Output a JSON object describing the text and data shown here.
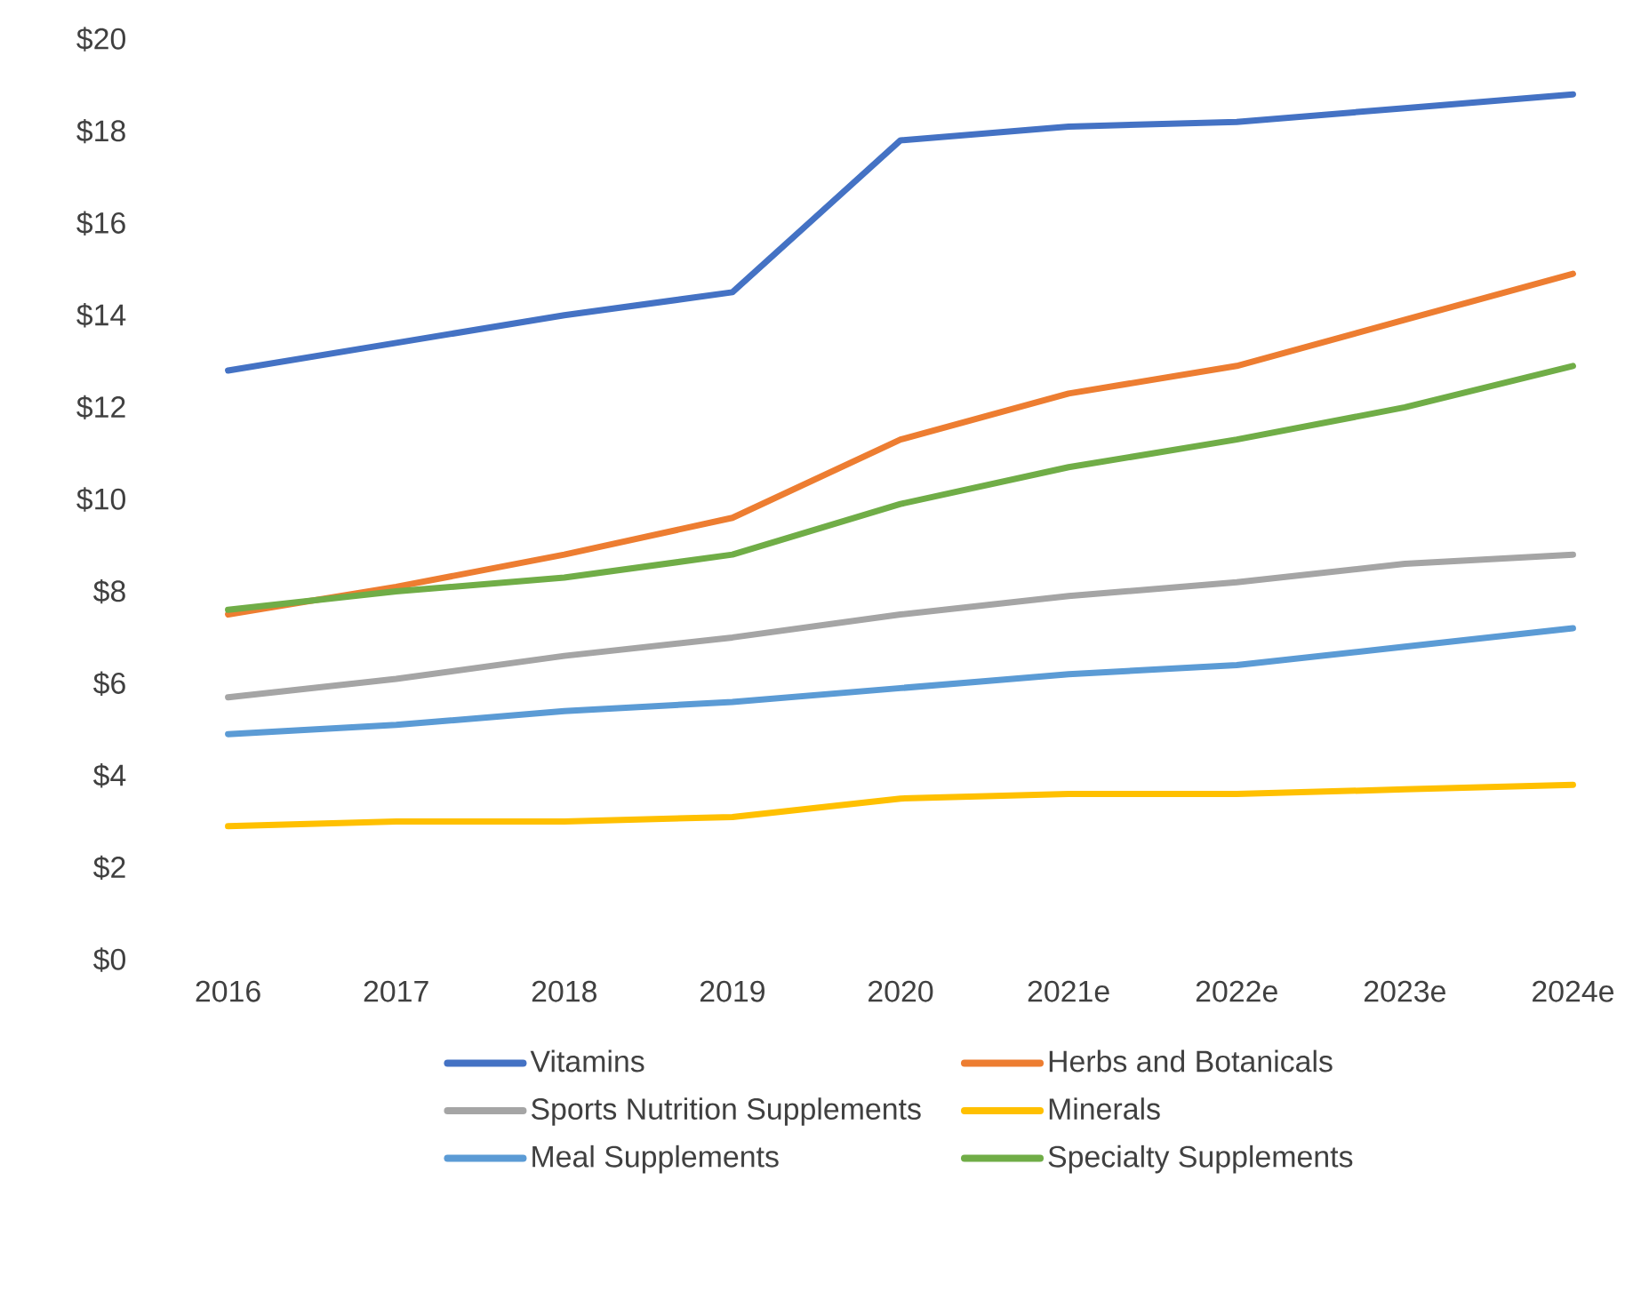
{
  "chart_data": {
    "type": "line",
    "categories": [
      "2016",
      "2017",
      "2018",
      "2019",
      "2020",
      "2021e",
      "2022e",
      "2023e",
      "2024e"
    ],
    "ylim": [
      0,
      20
    ],
    "yticks": [
      {
        "value": 0,
        "label": "$0"
      },
      {
        "value": 2,
        "label": "$2"
      },
      {
        "value": 4,
        "label": "$4"
      },
      {
        "value": 6,
        "label": "$6"
      },
      {
        "value": 8,
        "label": "$8"
      },
      {
        "value": 10,
        "label": "$10"
      },
      {
        "value": 12,
        "label": "$12"
      },
      {
        "value": 14,
        "label": "$14"
      },
      {
        "value": 16,
        "label": "$16"
      },
      {
        "value": 18,
        "label": "$18"
      },
      {
        "value": 20,
        "label": "$20"
      }
    ],
    "grid": false,
    "legend": "bottom",
    "marker": "none",
    "line_style": "solid",
    "series": [
      {
        "name": "Vitamins",
        "color": "#4472c4",
        "values": [
          12.8,
          13.4,
          14.0,
          14.5,
          17.8,
          18.1,
          18.2,
          18.5,
          18.8
        ]
      },
      {
        "name": "Herbs and Botanicals",
        "color": "#ed7d31",
        "values": [
          7.5,
          8.1,
          8.8,
          9.6,
          11.3,
          12.3,
          12.9,
          13.9,
          14.9
        ]
      },
      {
        "name": "Sports Nutrition Supplements",
        "color": "#a5a5a5",
        "values": [
          5.7,
          6.1,
          6.6,
          7.0,
          7.5,
          7.9,
          8.2,
          8.6,
          8.8
        ]
      },
      {
        "name": "Minerals",
        "color": "#ffc000",
        "values": [
          2.9,
          3.0,
          3.0,
          3.1,
          3.5,
          3.6,
          3.6,
          3.7,
          3.8
        ]
      },
      {
        "name": "Meal Supplements",
        "color": "#5b9bd5",
        "values": [
          4.9,
          5.1,
          5.4,
          5.6,
          5.9,
          6.2,
          6.4,
          6.8,
          7.2
        ]
      },
      {
        "name": "Specialty Supplements",
        "color": "#70ad47",
        "values": [
          7.6,
          8.0,
          8.3,
          8.8,
          9.9,
          10.7,
          11.3,
          12.0,
          12.9
        ]
      }
    ]
  }
}
